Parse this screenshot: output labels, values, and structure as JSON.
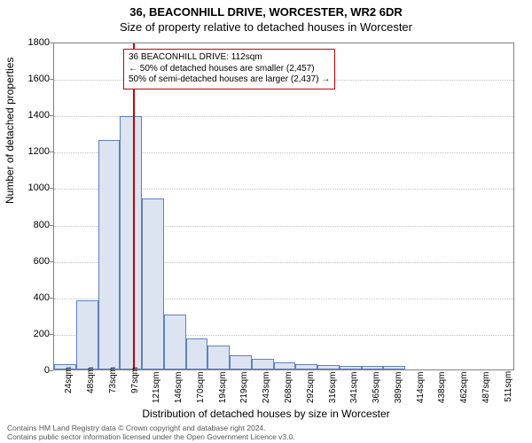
{
  "title_main": "36, BEACONHILL DRIVE, WORCESTER, WR2 6DR",
  "title_sub": "Size of property relative to detached houses in Worcester",
  "ylabel": "Number of detached properties",
  "xlabel": "Distribution of detached houses by size in Worcester",
  "footer_line1": "Contains HM Land Registry data © Crown copyright and database right 2024.",
  "footer_line2": "Contains public sector information licensed under the Open Government Licence v3.0.",
  "chart": {
    "type": "histogram",
    "background_color": "#ffffff",
    "grid_color": "#c0c0c0",
    "axis_color": "#808080",
    "bar_fill": "#dce4f2",
    "bar_border": "#6080c0",
    "refline_color": "#cc0000",
    "annot_border": "#cc0000",
    "title_fontsize": 13,
    "label_fontsize": 12,
    "tick_fontsize": 11,
    "xtick_fontsize": 10,
    "annot_fontsize": 10,
    "ylim": [
      0,
      1800
    ],
    "ytick_step": 200,
    "yticks": [
      0,
      200,
      400,
      600,
      800,
      1000,
      1200,
      1400,
      1600,
      1800
    ],
    "x_categories": [
      "24sqm",
      "48sqm",
      "73sqm",
      "97sqm",
      "121sqm",
      "146sqm",
      "170sqm",
      "194sqm",
      "219sqm",
      "243sqm",
      "268sqm",
      "292sqm",
      "316sqm",
      "341sqm",
      "365sqm",
      "389sqm",
      "414sqm",
      "438sqm",
      "462sqm",
      "487sqm",
      "511sqm"
    ],
    "bar_values": [
      30,
      380,
      1260,
      1390,
      940,
      300,
      170,
      130,
      80,
      60,
      40,
      30,
      25,
      20,
      20,
      18,
      0,
      0,
      0,
      0,
      0
    ],
    "bar_width_ratio": 1.0,
    "reference_value_sqm": 112,
    "reference_x_position": 3.6,
    "annotation": {
      "line1": "36 BEACONHILL DRIVE: 112sqm",
      "line2": "← 50% of detached houses are smaller (2,457)",
      "line3": "50% of semi-detached houses are larger (2,437) →"
    }
  }
}
